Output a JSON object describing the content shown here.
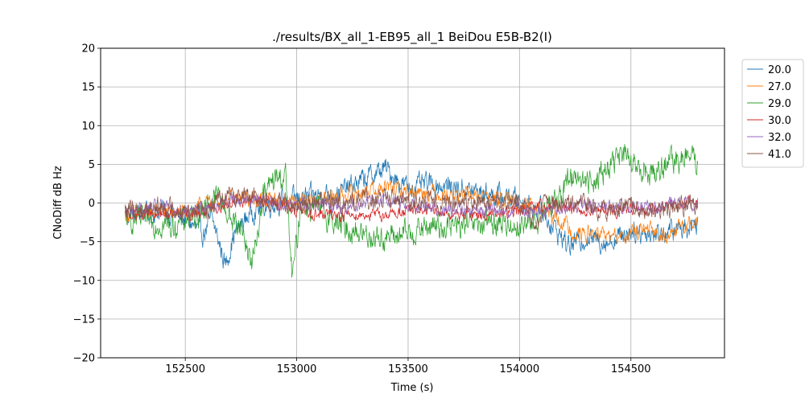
{
  "chart_data": {
    "type": "line",
    "title": "./results/BX_all_1-EB95_all_1 BeiDou E5B-B2(I)",
    "xlabel": "Time (s)",
    "ylabel": "CNoDiff dB Hz",
    "xlim": [
      152120,
      154920
    ],
    "ylim": [
      -20,
      20
    ],
    "xticks": [
      152500,
      153000,
      153500,
      154000,
      154500
    ],
    "yticks": [
      -20,
      -15,
      -10,
      -5,
      0,
      5,
      10,
      15,
      20
    ],
    "grid": true,
    "legend_position": "outside-top-right",
    "x_start": 152230,
    "x_end": 154800,
    "series": [
      {
        "name": "20.0",
        "color": "#1f77b4",
        "noise": 1.1,
        "points": [
          [
            152230,
            -1.5
          ],
          [
            152400,
            -1.0
          ],
          [
            152500,
            -2.0
          ],
          [
            152580,
            -4.0
          ],
          [
            152620,
            -2.0
          ],
          [
            152680,
            -8.0
          ],
          [
            152720,
            -4.0
          ],
          [
            152800,
            -1.0
          ],
          [
            152900,
            0.0
          ],
          [
            153000,
            0.5
          ],
          [
            153100,
            1.0
          ],
          [
            153200,
            1.5
          ],
          [
            153300,
            3.0
          ],
          [
            153400,
            4.5
          ],
          [
            153450,
            3.0
          ],
          [
            153500,
            2.0
          ],
          [
            153600,
            2.5
          ],
          [
            153700,
            2.0
          ],
          [
            153800,
            1.5
          ],
          [
            153900,
            1.0
          ],
          [
            154000,
            0.5
          ],
          [
            154100,
            -1.0
          ],
          [
            154150,
            -3.0
          ],
          [
            154220,
            -5.5
          ],
          [
            154300,
            -4.5
          ],
          [
            154400,
            -5.0
          ],
          [
            154500,
            -3.5
          ],
          [
            154600,
            -4.0
          ],
          [
            154700,
            -3.5
          ],
          [
            154800,
            -2.5
          ]
        ]
      },
      {
        "name": "27.0",
        "color": "#ff7f0e",
        "noise": 0.8,
        "points": [
          [
            152230,
            -1.5
          ],
          [
            152400,
            -1.0
          ],
          [
            152500,
            -1.5
          ],
          [
            152600,
            0.0
          ],
          [
            152700,
            0.5
          ],
          [
            152800,
            0.5
          ],
          [
            152900,
            0.5
          ],
          [
            153000,
            0.0
          ],
          [
            153100,
            0.5
          ],
          [
            153200,
            1.0
          ],
          [
            153300,
            1.5
          ],
          [
            153400,
            2.0
          ],
          [
            153500,
            1.5
          ],
          [
            153600,
            1.5
          ],
          [
            153700,
            1.0
          ],
          [
            153800,
            1.0
          ],
          [
            153900,
            0.5
          ],
          [
            154000,
            0.0
          ],
          [
            154100,
            -1.0
          ],
          [
            154200,
            -2.5
          ],
          [
            154250,
            -4.0
          ],
          [
            154350,
            -4.0
          ],
          [
            154450,
            -4.5
          ],
          [
            154550,
            -3.5
          ],
          [
            154650,
            -4.0
          ],
          [
            154800,
            -2.5
          ]
        ]
      },
      {
        "name": "29.0",
        "color": "#2ca02c",
        "noise": 1.3,
        "points": [
          [
            152230,
            -2.0
          ],
          [
            152350,
            -2.5
          ],
          [
            152450,
            -3.0
          ],
          [
            152550,
            -1.5
          ],
          [
            152650,
            1.0
          ],
          [
            152700,
            -2.0
          ],
          [
            152750,
            -3.0
          ],
          [
            152800,
            -8.0
          ],
          [
            152850,
            1.0
          ],
          [
            152900,
            3.0
          ],
          [
            152950,
            3.5
          ],
          [
            152980,
            -10.0
          ],
          [
            153020,
            0.0
          ],
          [
            153100,
            -1.0
          ],
          [
            153200,
            -3.0
          ],
          [
            153300,
            -4.0
          ],
          [
            153400,
            -4.5
          ],
          [
            153500,
            -4.0
          ],
          [
            153600,
            -3.0
          ],
          [
            153700,
            -3.0
          ],
          [
            153800,
            -3.0
          ],
          [
            153900,
            -2.5
          ],
          [
            154000,
            -3.0
          ],
          [
            154100,
            -2.0
          ],
          [
            154150,
            0.0
          ],
          [
            154200,
            2.0
          ],
          [
            154250,
            4.0
          ],
          [
            154300,
            2.5
          ],
          [
            154400,
            4.5
          ],
          [
            154450,
            6.5
          ],
          [
            154500,
            5.0
          ],
          [
            154550,
            4.0
          ],
          [
            154600,
            4.0
          ],
          [
            154700,
            5.5
          ],
          [
            154750,
            6.0
          ],
          [
            154800,
            5.0
          ]
        ]
      },
      {
        "name": "30.0",
        "color": "#d62728",
        "noise": 0.6,
        "points": [
          [
            152230,
            -1.5
          ],
          [
            152400,
            -1.5
          ],
          [
            152500,
            -1.5
          ],
          [
            152600,
            -1.0
          ],
          [
            152700,
            0.0
          ],
          [
            152800,
            0.5
          ],
          [
            152900,
            0.0
          ],
          [
            153000,
            -1.0
          ],
          [
            153100,
            -1.5
          ],
          [
            153200,
            -1.5
          ],
          [
            153300,
            -1.5
          ],
          [
            153400,
            -1.5
          ],
          [
            153500,
            -1.0
          ],
          [
            153600,
            -1.0
          ],
          [
            153700,
            -1.5
          ],
          [
            153800,
            -1.5
          ],
          [
            153900,
            -1.5
          ],
          [
            154000,
            -1.0
          ],
          [
            154100,
            -0.5
          ],
          [
            154200,
            -0.5
          ],
          [
            154300,
            -1.0
          ],
          [
            154400,
            -1.0
          ],
          [
            154500,
            -1.0
          ],
          [
            154600,
            -1.0
          ],
          [
            154700,
            0.0
          ],
          [
            154800,
            0.5
          ]
        ]
      },
      {
        "name": "32.0",
        "color": "#9467bd",
        "noise": 0.7,
        "points": [
          [
            152230,
            -1.0
          ],
          [
            152400,
            -0.5
          ],
          [
            152500,
            -1.0
          ],
          [
            152600,
            -0.5
          ],
          [
            152700,
            0.5
          ],
          [
            152800,
            0.5
          ],
          [
            152900,
            0.0
          ],
          [
            153000,
            0.0
          ],
          [
            153100,
            0.0
          ],
          [
            153200,
            -0.5
          ],
          [
            153300,
            0.0
          ],
          [
            153400,
            0.5
          ],
          [
            153500,
            0.0
          ],
          [
            153600,
            -0.5
          ],
          [
            153700,
            -1.0
          ],
          [
            153800,
            -1.0
          ],
          [
            153900,
            -1.0
          ],
          [
            154000,
            -1.0
          ],
          [
            154100,
            -1.0
          ],
          [
            154200,
            -0.5
          ],
          [
            154300,
            -0.5
          ],
          [
            154400,
            -0.5
          ],
          [
            154500,
            -0.5
          ],
          [
            154600,
            -0.5
          ],
          [
            154700,
            0.0
          ],
          [
            154800,
            0.0
          ]
        ]
      },
      {
        "name": "41.0",
        "color": "#8c564b",
        "noise": 1.0,
        "points": [
          [
            152230,
            -1.0
          ],
          [
            152400,
            -0.5
          ],
          [
            152500,
            -1.0
          ],
          [
            152600,
            -0.5
          ],
          [
            152700,
            1.0
          ],
          [
            152800,
            1.0
          ],
          [
            152900,
            0.0
          ],
          [
            153000,
            0.0
          ],
          [
            153100,
            0.0
          ],
          [
            153200,
            0.0
          ],
          [
            153300,
            0.5
          ],
          [
            153400,
            0.5
          ],
          [
            153500,
            0.5
          ],
          [
            153600,
            0.0
          ],
          [
            153700,
            0.0
          ],
          [
            153800,
            0.0
          ],
          [
            153900,
            0.0
          ],
          [
            154000,
            0.0
          ],
          [
            154080,
            -3.0
          ],
          [
            154120,
            0.0
          ],
          [
            154200,
            0.0
          ],
          [
            154300,
            -0.5
          ],
          [
            154400,
            -1.0
          ],
          [
            154500,
            -0.5
          ],
          [
            154600,
            -1.0
          ],
          [
            154700,
            -0.5
          ],
          [
            154800,
            0.0
          ]
        ]
      }
    ]
  }
}
